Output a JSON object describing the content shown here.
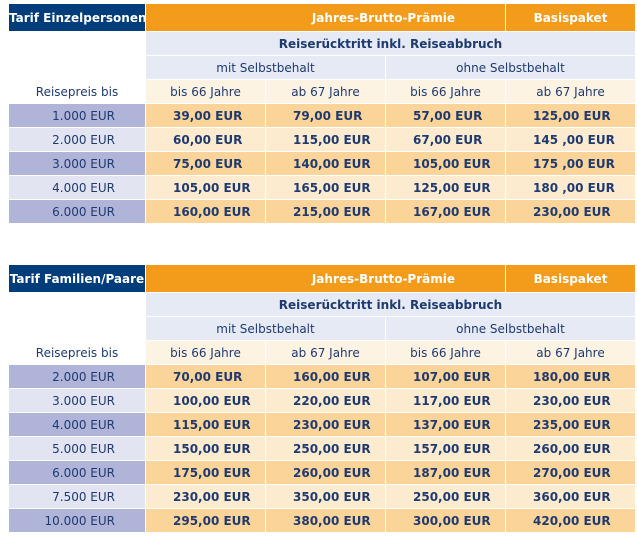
{
  "tables": [
    {
      "title": "Tarif Einzelpersonen",
      "premium_header": "Jahres-Brutto-Prämie",
      "package": "Basispaket",
      "coverage": "Reiserücktritt  inkl. Reiseabbruch",
      "group_with": "mit Selbstbehalt",
      "group_without": "ohne Selbstbehalt",
      "price_label": "Reisepreis bis",
      "age_to_66": "bis 66 Jahre",
      "age_from_67": "ab 67 Jahre",
      "rows": [
        {
          "price": "1.000 EUR",
          "v1": "39,00 EUR",
          "v2": "79,00 EUR",
          "v3": "57,00 EUR",
          "v4": "125,00 EUR"
        },
        {
          "price": "2.000 EUR",
          "v1": "60,00 EUR",
          "v2": "115,00 EUR",
          "v3": "67,00 EUR",
          "v4": "145 ,00 EUR"
        },
        {
          "price": "3.000 EUR",
          "v1": "75,00 EUR",
          "v2": "140,00 EUR",
          "v3": "105,00 EUR",
          "v4": "175 ,00 EUR"
        },
        {
          "price": "4.000 EUR",
          "v1": "105,00 EUR",
          "v2": "165,00 EUR",
          "v3": "125,00 EUR",
          "v4": "180 ,00 EUR"
        },
        {
          "price": "6.000 EUR",
          "v1": "160,00 EUR",
          "v2": "215,00 EUR",
          "v3": "167,00 EUR",
          "v4": "230,00 EUR"
        }
      ]
    },
    {
      "title": "Tarif Familien/Paare",
      "premium_header": "Jahres-Brutto-Prämie",
      "package": "Basispaket",
      "coverage": "Reiserücktritt  inkl. Reiseabbruch",
      "group_with": "mit Selbstbehalt",
      "group_without": "ohne Selbstbehalt",
      "price_label": "Reisepreis bis",
      "age_to_66": "bis 66 Jahre",
      "age_from_67": "ab 67 Jahre",
      "rows": [
        {
          "price": "2.000 EUR",
          "v1": "70,00 EUR",
          "v2": "160,00 EUR",
          "v3": "107,00 EUR",
          "v4": "180,00 EUR"
        },
        {
          "price": "3.000 EUR",
          "v1": "100,00 EUR",
          "v2": "220,00 EUR",
          "v3": "117,00 EUR",
          "v4": "230,00 EUR"
        },
        {
          "price": "4.000 EUR",
          "v1": "115,00 EUR",
          "v2": "230,00 EUR",
          "v3": "137,00 EUR",
          "v4": "235,00 EUR"
        },
        {
          "price": "5.000 EUR",
          "v1": "150,00 EUR",
          "v2": "250,00 EUR",
          "v3": "157,00 EUR",
          "v4": "260,00 EUR"
        },
        {
          "price": "6.000 EUR",
          "v1": "175,00 EUR",
          "v2": "260,00 EUR",
          "v3": "187,00 EUR",
          "v4": "270,00 EUR"
        },
        {
          "price": "7.500 EUR",
          "v1": "230,00 EUR",
          "v2": "350,00 EUR",
          "v3": "250,00 EUR",
          "v4": "360,00 EUR"
        },
        {
          "price": "10.000 EUR",
          "v1": "295,00 EUR",
          "v2": "380,00 EUR",
          "v3": "300,00 EUR",
          "v4": "420,00 EUR"
        }
      ]
    }
  ]
}
